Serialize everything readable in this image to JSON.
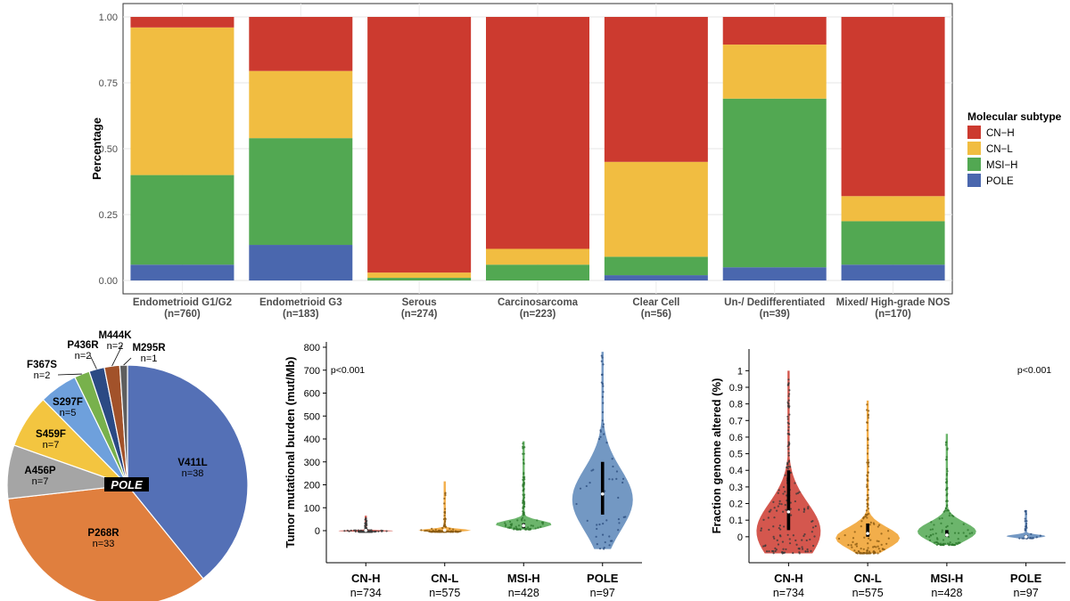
{
  "colors": {
    "CN-H": "#cc3a2f",
    "CN-L": "#f1bd41",
    "MSI-H": "#52a852",
    "POLE": "#4a67ae"
  },
  "chart_data": [
    {
      "type": "bar",
      "stacked": true,
      "ylabel": "Percentage",
      "ylim": [
        0,
        1
      ],
      "yticks": [
        "0.00",
        "0.25",
        "0.50",
        "0.75",
        "1.00"
      ],
      "grid": true,
      "legend": {
        "title": "Molecular subtype",
        "position": "right",
        "entries": [
          "CN−H",
          "CN−L",
          "MSI−H",
          "POLE"
        ]
      },
      "categories": [
        {
          "name": "Endometrioid G1/G2",
          "n": "(n=760)"
        },
        {
          "name": "Endometrioid G3",
          "n": "(n=183)"
        },
        {
          "name": "Serous",
          "n": "(n=274)"
        },
        {
          "name": "Carcinosarcoma",
          "n": "(n=223)"
        },
        {
          "name": "Clear Cell",
          "n": "(n=56)"
        },
        {
          "name": "Un-/ Dedifferentiated",
          "n": "(n=39)"
        },
        {
          "name": "Mixed/ High-grade NOS",
          "n": "(n=170)"
        }
      ],
      "series": [
        {
          "name": "POLE",
          "values": [
            0.06,
            0.135,
            0.0,
            0.0,
            0.02,
            0.05,
            0.06
          ]
        },
        {
          "name": "MSI-H",
          "values": [
            0.34,
            0.405,
            0.01,
            0.06,
            0.07,
            0.64,
            0.165
          ]
        },
        {
          "name": "CN-L",
          "values": [
            0.56,
            0.255,
            0.02,
            0.06,
            0.36,
            0.205,
            0.095
          ]
        },
        {
          "name": "CN-H",
          "values": [
            0.04,
            0.205,
            0.97,
            0.88,
            0.55,
            0.105,
            0.68
          ]
        }
      ]
    },
    {
      "type": "pie",
      "center_label": "POLE",
      "slices": [
        {
          "label": "V411L",
          "n": "n=38",
          "value": 38,
          "color": "#5470b6"
        },
        {
          "label": "P268R",
          "n": "n=33",
          "value": 33,
          "color": "#e07f3e"
        },
        {
          "label": "A456P",
          "n": "n=7",
          "value": 7,
          "color": "#a5a5a5"
        },
        {
          "label": "S459F",
          "n": "n=7",
          "value": 7,
          "color": "#f3c540"
        },
        {
          "label": "S297F",
          "n": "n=5",
          "value": 5,
          "color": "#6ea0dc"
        },
        {
          "label": "F367S",
          "n": "n=2",
          "value": 2,
          "color": "#78b14c"
        },
        {
          "label": "P436R",
          "n": "n=2",
          "value": 2,
          "color": "#2b4a84"
        },
        {
          "label": "M444K",
          "n": "n=2",
          "value": 2,
          "color": "#a2522a"
        },
        {
          "label": "M295R",
          "n": "n=1",
          "value": 1,
          "color": "#5e5e5e"
        }
      ]
    },
    {
      "type": "violin",
      "ylabel": "Tumor mutational burden (mut/Mb)",
      "ylim": [
        -100,
        800
      ],
      "yticks": [
        0,
        100,
        200,
        300,
        400,
        500,
        600,
        700,
        800
      ],
      "annotation": "p<0.001",
      "categories": [
        {
          "name": "CN-H",
          "n": "n=734",
          "median": 1,
          "q1": 0,
          "q3": 3,
          "max": 65
        },
        {
          "name": "CN-L",
          "n": "n=575",
          "median": 2,
          "q1": 1,
          "q3": 4,
          "max": 215
        },
        {
          "name": "MSI-H",
          "n": "n=428",
          "median": 22,
          "q1": 12,
          "q3": 32,
          "max": 390
        },
        {
          "name": "POLE",
          "n": "n=97",
          "median": 160,
          "q1": 70,
          "q3": 300,
          "max": 780
        }
      ]
    },
    {
      "type": "violin",
      "ylabel": "Fraction genome altered (%)",
      "ylim": [
        -0.1,
        1.05
      ],
      "yticks": [
        "0",
        "0.1",
        "0.2",
        "0.3",
        "0.4",
        "0.5",
        "0.6",
        "0.7",
        "0.8",
        "0.9",
        "1"
      ],
      "annotation": "p<0.001",
      "categories": [
        {
          "name": "CN-H",
          "n": "n=734",
          "median": 0.15,
          "q1": 0.04,
          "q3": 0.4,
          "max": 1.0
        },
        {
          "name": "CN-L",
          "n": "n=575",
          "median": 0.02,
          "q1": 0.0,
          "q3": 0.08,
          "max": 0.82
        },
        {
          "name": "MSI-H",
          "n": "n=428",
          "median": 0.01,
          "q1": 0.0,
          "q3": 0.04,
          "max": 0.62
        },
        {
          "name": "POLE",
          "n": "n=97",
          "median": 0.0,
          "q1": 0.0,
          "q3": 0.01,
          "max": 0.16
        }
      ]
    }
  ]
}
